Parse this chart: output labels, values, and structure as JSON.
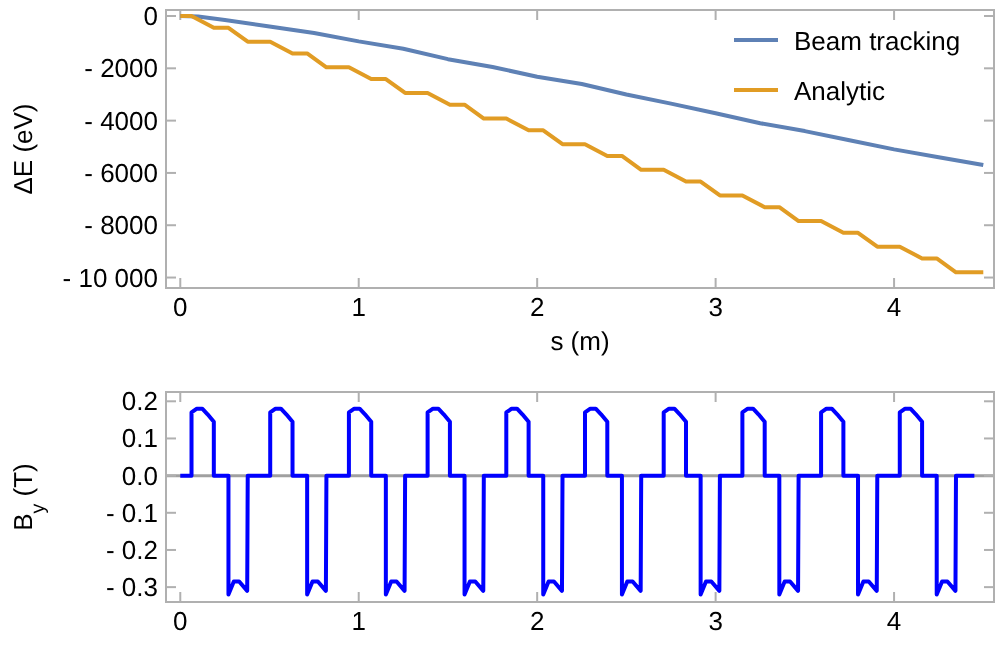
{
  "chart_data": [
    {
      "type": "line",
      "xlabel": "s (m)",
      "ylabel": "ΔE (eV)",
      "xlim": [
        -0.08,
        4.56
      ],
      "ylim": [
        -10400,
        230
      ],
      "xticks": [
        0,
        1,
        2,
        3,
        4
      ],
      "yticks": [
        0,
        {
          "value": -2000,
          "label": "- 2000"
        },
        {
          "value": -4000,
          "label": "- 4000"
        },
        {
          "value": -6000,
          "label": "- 6000"
        },
        {
          "value": -8000,
          "label": "- 8000"
        },
        {
          "value": -10000,
          "label": "- 10 000"
        }
      ],
      "legend": "top right",
      "grid": false,
      "series": [
        {
          "name": "Beam tracking",
          "color": "#5e81b5",
          "x": [
            0,
            0.1,
            0.25,
            0.5,
            0.75,
            1,
            1.25,
            1.5,
            1.75,
            2,
            2.25,
            2.5,
            2.75,
            3,
            3.25,
            3.5,
            3.75,
            4,
            4.25,
            4.5
          ],
          "values": [
            0,
            -20,
            -150,
            -400,
            -650,
            -970,
            -1250,
            -1650,
            -1950,
            -2320,
            -2600,
            -3000,
            -3350,
            -3720,
            -4100,
            -4400,
            -4750,
            -5100,
            -5400,
            -5700
          ]
        },
        {
          "name": "Analytic",
          "color": "#e19c24",
          "x": [
            0,
            0.063,
            0.188,
            0.27,
            0.378,
            0.504,
            0.629,
            0.711,
            0.819,
            0.945,
            1.07,
            1.152,
            1.26,
            1.386,
            1.511,
            1.593,
            1.701,
            1.827,
            1.952,
            2.034,
            2.142,
            2.268,
            2.393,
            2.475,
            2.583,
            2.709,
            2.834,
            2.916,
            3.024,
            3.15,
            3.275,
            3.357,
            3.465,
            3.591,
            3.716,
            3.798,
            3.906,
            4.032,
            4.157,
            4.239,
            4.347,
            4.5
          ],
          "values": [
            0,
            0,
            -450,
            -450,
            -980,
            -980,
            -1430,
            -1430,
            -1960,
            -1960,
            -2410,
            -2410,
            -2940,
            -2940,
            -3390,
            -3390,
            -3920,
            -3920,
            -4370,
            -4370,
            -4900,
            -4900,
            -5350,
            -5350,
            -5880,
            -5880,
            -6330,
            -6330,
            -6860,
            -6860,
            -7310,
            -7310,
            -7840,
            -7840,
            -8290,
            -8290,
            -8820,
            -8820,
            -9270,
            -9270,
            -9800,
            -9800
          ]
        }
      ]
    },
    {
      "type": "line",
      "ylabel": "B$_{y}$ (T)",
      "xlim": [
        -0.08,
        4.56
      ],
      "ylim": [
        -0.34,
        0.225
      ],
      "xticks": [
        0,
        1,
        2,
        3,
        4
      ],
      "yticks": [
        0.2,
        0.1,
        {
          "value": 0,
          "label": "0.0"
        },
        {
          "value": -0.1,
          "label": "- 0.1"
        },
        {
          "value": -0.2,
          "label": "- 0.2"
        },
        {
          "value": -0.3,
          "label": "- 0.3"
        }
      ],
      "grid": false,
      "ref_lines": [
        {
          "axis": "y",
          "value": 0,
          "color": "#a0a0a0"
        }
      ],
      "series": [
        {
          "color": "#0000ff",
          "x": [
            0,
            0.063,
            0.063,
            0.093,
            0.123,
            0.153,
            0.188,
            0.188,
            0.27,
            0.27,
            0.3,
            0.33,
            0.375,
            0.378,
            0.504,
            0.504,
            0.534,
            0.564,
            0.594,
            0.629,
            0.629,
            0.711,
            0.711,
            0.741,
            0.771,
            0.816,
            0.819,
            0.945,
            0.945,
            0.975,
            1.005,
            1.035,
            1.07,
            1.07,
            1.152,
            1.152,
            1.182,
            1.212,
            1.257,
            1.26,
            1.386,
            1.386,
            1.416,
            1.446,
            1.476,
            1.511,
            1.511,
            1.593,
            1.593,
            1.623,
            1.653,
            1.698,
            1.701,
            1.827,
            1.827,
            1.857,
            1.887,
            1.917,
            1.952,
            1.952,
            2.034,
            2.034,
            2.064,
            2.094,
            2.139,
            2.142,
            2.268,
            2.268,
            2.298,
            2.328,
            2.358,
            2.393,
            2.393,
            2.475,
            2.475,
            2.505,
            2.535,
            2.58,
            2.583,
            2.709,
            2.709,
            2.739,
            2.769,
            2.799,
            2.834,
            2.834,
            2.916,
            2.916,
            2.946,
            2.976,
            3.021,
            3.024,
            3.15,
            3.15,
            3.18,
            3.21,
            3.24,
            3.275,
            3.275,
            3.357,
            3.357,
            3.387,
            3.417,
            3.462,
            3.465,
            3.591,
            3.591,
            3.621,
            3.651,
            3.681,
            3.716,
            3.716,
            3.798,
            3.798,
            3.828,
            3.858,
            3.903,
            3.906,
            4.032,
            4.032,
            4.062,
            4.092,
            4.122,
            4.157,
            4.157,
            4.239,
            4.239,
            4.269,
            4.299,
            4.344,
            4.347,
            4.45
          ],
          "values": [
            0,
            0,
            0.17,
            0.18,
            0.18,
            0.165,
            0.145,
            0,
            0,
            -0.32,
            -0.285,
            -0.285,
            -0.31,
            0,
            0,
            0.17,
            0.18,
            0.18,
            0.165,
            0.145,
            0,
            0,
            -0.32,
            -0.285,
            -0.285,
            -0.31,
            0,
            0,
            0.17,
            0.18,
            0.18,
            0.165,
            0.145,
            0,
            0,
            -0.32,
            -0.285,
            -0.285,
            -0.31,
            0,
            0,
            0.17,
            0.18,
            0.18,
            0.165,
            0.145,
            0,
            0,
            -0.32,
            -0.285,
            -0.285,
            -0.31,
            0,
            0,
            0.17,
            0.18,
            0.18,
            0.165,
            0.145,
            0,
            0,
            -0.32,
            -0.285,
            -0.285,
            -0.31,
            0,
            0,
            0.17,
            0.18,
            0.18,
            0.165,
            0.145,
            0,
            0,
            -0.32,
            -0.285,
            -0.285,
            -0.31,
            0,
            0,
            0.17,
            0.18,
            0.18,
            0.165,
            0.145,
            0,
            0,
            -0.32,
            -0.285,
            -0.285,
            -0.31,
            0,
            0,
            0.17,
            0.18,
            0.18,
            0.165,
            0.145,
            0,
            0,
            -0.32,
            -0.285,
            -0.285,
            -0.31,
            0,
            0,
            0.17,
            0.18,
            0.18,
            0.165,
            0.145,
            0,
            0,
            -0.32,
            -0.285,
            -0.285,
            -0.31,
            0,
            0,
            0.17,
            0.18,
            0.18,
            0.165,
            0.145,
            0,
            0,
            -0.32,
            -0.285,
            -0.285,
            -0.31,
            0,
            0
          ]
        }
      ]
    }
  ]
}
